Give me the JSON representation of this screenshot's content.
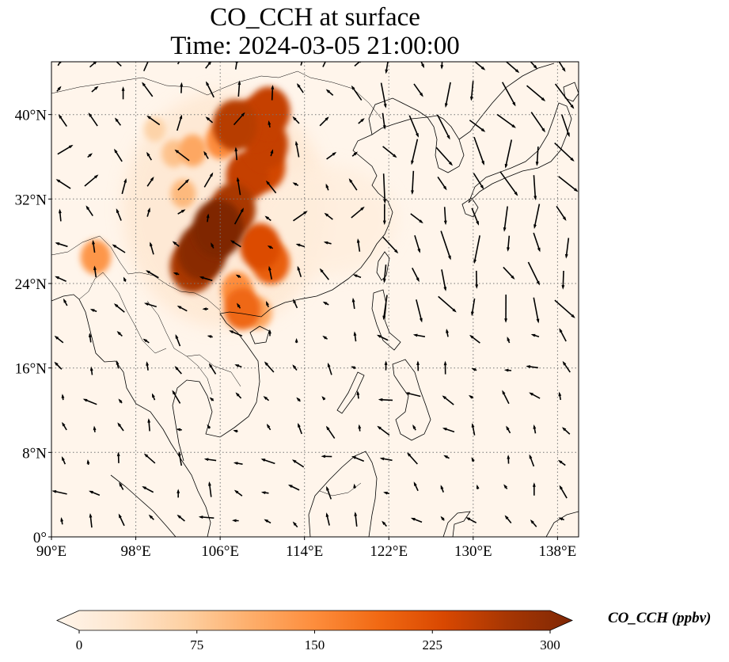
{
  "title": {
    "line1": "CO_CCH at surface",
    "line2": "Time: 2024-03-05 21:00:00"
  },
  "map": {
    "projection": "PlateCarree",
    "lon_range": [
      90,
      140
    ],
    "lat_range": [
      0,
      45
    ],
    "gridlines": "dotted",
    "lon_ticks": [
      {
        "value": 90,
        "label": "90°E"
      },
      {
        "value": 98,
        "label": "98°E"
      },
      {
        "value": 106,
        "label": "106°E"
      },
      {
        "value": 114,
        "label": "114°E"
      },
      {
        "value": 122,
        "label": "122°E"
      },
      {
        "value": 130,
        "label": "130°E"
      },
      {
        "value": 138,
        "label": "138°E"
      }
    ],
    "lat_ticks": [
      {
        "value": 0,
        "label": "0°"
      },
      {
        "value": 8,
        "label": "8°N"
      },
      {
        "value": 16,
        "label": "16°N"
      },
      {
        "value": 24,
        "label": "24°N"
      },
      {
        "value": 32,
        "label": "32°N"
      },
      {
        "value": 40,
        "label": "40°N"
      }
    ]
  },
  "colorbar": {
    "label": "CO_CCH (ppbv)",
    "min": 0,
    "max": 300,
    "extend": "both",
    "ticks": [
      "0",
      "75",
      "150",
      "225",
      "300"
    ],
    "colors": [
      "#fff5eb",
      "#fee6ce",
      "#fdd0a2",
      "#fdae6b",
      "#fd8d3c",
      "#f16913",
      "#d94801",
      "#a63603",
      "#7f2704"
    ]
  },
  "chart_data": {
    "type": "heatmap",
    "variable": "CO_CCH",
    "units": "ppbv",
    "plumes": [
      {
        "lon": 105.8,
        "lat": 29.2,
        "value": 300
      },
      {
        "lon": 104.3,
        "lat": 27.0,
        "value": 290
      },
      {
        "lon": 107.2,
        "lat": 31.0,
        "value": 260
      },
      {
        "lon": 103.4,
        "lat": 25.6,
        "value": 260
      },
      {
        "lon": 109.8,
        "lat": 27.5,
        "value": 220
      },
      {
        "lon": 110.8,
        "lat": 26.0,
        "value": 200
      },
      {
        "lon": 108.6,
        "lat": 34.2,
        "value": 240
      },
      {
        "lon": 110.2,
        "lat": 35.0,
        "value": 230
      },
      {
        "lon": 110.4,
        "lat": 37.2,
        "value": 240
      },
      {
        "lon": 109.2,
        "lat": 39.2,
        "value": 240
      },
      {
        "lon": 110.6,
        "lat": 40.3,
        "value": 240
      },
      {
        "lon": 107.4,
        "lat": 39.0,
        "value": 250
      },
      {
        "lon": 106.1,
        "lat": 37.5,
        "value": 150
      },
      {
        "lon": 103.4,
        "lat": 36.6,
        "value": 120
      },
      {
        "lon": 101.6,
        "lat": 36.3,
        "value": 90
      },
      {
        "lon": 108.1,
        "lat": 21.6,
        "value": 190
      },
      {
        "lon": 107.6,
        "lat": 23.4,
        "value": 150
      },
      {
        "lon": 109.6,
        "lat": 21.2,
        "value": 120
      },
      {
        "lon": 94.2,
        "lat": 26.5,
        "value": 140
      },
      {
        "lon": 99.8,
        "lat": 38.6,
        "value": 70
      },
      {
        "lon": 102.5,
        "lat": 32.5,
        "value": 100
      }
    ]
  }
}
